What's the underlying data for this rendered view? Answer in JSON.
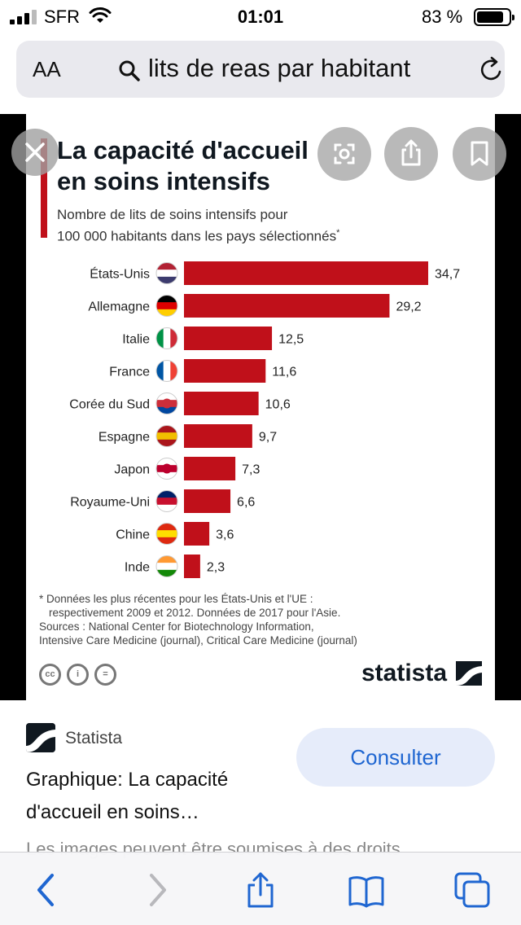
{
  "status_bar": {
    "carrier": "SFR",
    "time": "01:01",
    "battery_percent": "83 %",
    "battery_level": 0.83
  },
  "address_bar": {
    "text_size_label": "AA",
    "query": "lits de reas par habitant",
    "icons": [
      "search-icon",
      "reload-icon"
    ]
  },
  "image_viewer": {
    "buttons": [
      "close-icon",
      "visual-lookup-icon",
      "share-icon",
      "bookmark-icon"
    ]
  },
  "chart_data": {
    "type": "bar",
    "orientation": "horizontal",
    "title": "La capacité d'accueil en soins intensifs",
    "subtitle_line1": "Nombre de lits de soins intensifs pour",
    "subtitle_line2": "100 000 habitants dans les pays sélectionnés",
    "subtitle_mark": "*",
    "categories": [
      "États-Unis",
      "Allemagne",
      "Italie",
      "France",
      "Corée du Sud",
      "Espagne",
      "Japon",
      "Royaume-Uni",
      "Chine",
      "Inde"
    ],
    "values": [
      34.7,
      29.2,
      12.5,
      11.6,
      10.6,
      9.7,
      7.3,
      6.6,
      3.6,
      2.3
    ],
    "value_labels": [
      "34,7",
      "29,2",
      "12,5",
      "11,6",
      "10,6",
      "9,7",
      "7,3",
      "6,6",
      "3,6",
      "2,3"
    ],
    "xlim": [
      0,
      34.7
    ],
    "bar_color": "#c0101a",
    "grid": false,
    "legend": "none"
  },
  "chart_footer": {
    "note_line1": "* Données les plus récentes pour les États-Unis et l'UE :",
    "note_line2": "respectivement 2009 et 2012. Données de 2017 pour l'Asie.",
    "sources_line1": "Sources : National Center for Biotechnology Information,",
    "sources_line2": "Intensive Care Medicine (journal), Critical Care Medicine (journal)",
    "license_icons": [
      "cc",
      "by",
      "nd"
    ],
    "brand": "statista"
  },
  "result": {
    "source": "Statista",
    "title_line1": "Graphique: La capacité",
    "title_line2": "d'accueil en soins…",
    "button_label": "Consulter",
    "disclaimer": "Les images peuvent être soumises à des droits"
  },
  "toolbar": {
    "icons": [
      "back-icon",
      "forward-icon",
      "share-icon",
      "bookmarks-icon",
      "tabs-icon"
    ]
  },
  "colors": {
    "accent": "#c0101a",
    "link_blue": "#1f66d1",
    "brand_dark": "#101820"
  }
}
